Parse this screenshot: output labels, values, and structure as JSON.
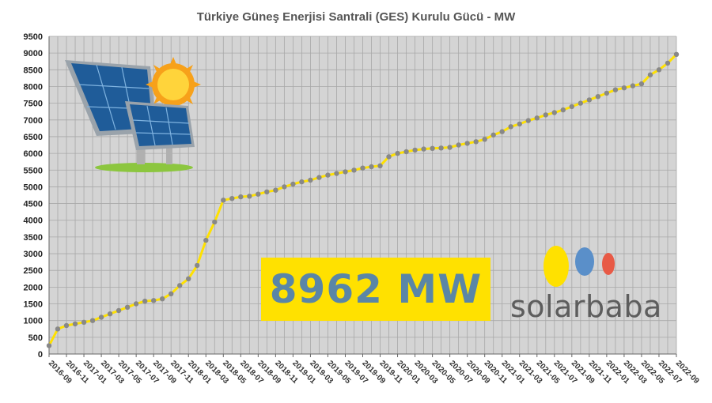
{
  "chart_data": {
    "type": "line",
    "title": "Türkiye Güneş Enerjisi Santrali (GES) Kurulu Gücü - MW",
    "xlabel": "",
    "ylabel": "",
    "ylim": [
      0,
      9500
    ],
    "yticks": [
      0,
      500,
      1000,
      1500,
      2000,
      2500,
      3000,
      3500,
      4000,
      4500,
      5000,
      5500,
      6000,
      6500,
      7000,
      7500,
      8000,
      8500,
      9000,
      9500
    ],
    "grid": true,
    "x_tick_labels": [
      "2016-09",
      "2016-11",
      "2017-01",
      "2017-03",
      "2017-05",
      "2017-07",
      "2017-09",
      "2017-11",
      "2018-01",
      "2018-03",
      "2018-05",
      "2018-07",
      "2018-09",
      "2018-11",
      "2019-01",
      "2019-03",
      "2019-05",
      "2019-07",
      "2019-09",
      "2019-11",
      "2020-01",
      "2020-03",
      "2020-05",
      "2020-07",
      "2020-09",
      "2020-11",
      "2021-01",
      "2021-03",
      "2021-05",
      "2021-07",
      "2021-09",
      "2021-11",
      "2022-01",
      "2022-03",
      "2022-05",
      "2022-07",
      "2022-09"
    ],
    "series": [
      {
        "line_color": "#ffe100",
        "marker_color": "#888888",
        "x": [
          "2016-09",
          "2016-10",
          "2016-11",
          "2016-12",
          "2017-01",
          "2017-02",
          "2017-03",
          "2017-04",
          "2017-05",
          "2017-06",
          "2017-07",
          "2017-08",
          "2017-09",
          "2017-10",
          "2017-11",
          "2017-12",
          "2018-01",
          "2018-02",
          "2018-03",
          "2018-04",
          "2018-05",
          "2018-06",
          "2018-07",
          "2018-08",
          "2018-09",
          "2018-10",
          "2018-11",
          "2018-12",
          "2019-01",
          "2019-02",
          "2019-03",
          "2019-04",
          "2019-05",
          "2019-06",
          "2019-07",
          "2019-08",
          "2019-09",
          "2019-10",
          "2019-11",
          "2019-12",
          "2020-01",
          "2020-02",
          "2020-03",
          "2020-04",
          "2020-05",
          "2020-06",
          "2020-07",
          "2020-08",
          "2020-09",
          "2020-10",
          "2020-11",
          "2020-12",
          "2021-01",
          "2021-02",
          "2021-03",
          "2021-04",
          "2021-05",
          "2021-06",
          "2021-07",
          "2021-08",
          "2021-09",
          "2021-10",
          "2021-11",
          "2021-12",
          "2022-01",
          "2022-02",
          "2022-03",
          "2022-04",
          "2022-05",
          "2022-06",
          "2022-07",
          "2022-08",
          "2022-09"
        ],
        "values": [
          250,
          750,
          850,
          900,
          950,
          1000,
          1100,
          1200,
          1300,
          1400,
          1500,
          1580,
          1600,
          1650,
          1800,
          2050,
          2250,
          2650,
          3400,
          3950,
          4600,
          4650,
          4700,
          4720,
          4780,
          4850,
          4900,
          5000,
          5080,
          5150,
          5200,
          5280,
          5350,
          5400,
          5450,
          5500,
          5560,
          5600,
          5630,
          5900,
          6000,
          6050,
          6100,
          6130,
          6150,
          6160,
          6180,
          6250,
          6300,
          6350,
          6420,
          6550,
          6650,
          6800,
          6880,
          6980,
          7060,
          7150,
          7220,
          7300,
          7400,
          7500,
          7600,
          7700,
          7800,
          7900,
          7960,
          8020,
          8080,
          8350,
          8500,
          8700,
          8962
        ]
      }
    ]
  },
  "highlight": {
    "value_text": "8962 MW"
  },
  "brand": {
    "name": "solarbaba",
    "dot_colors": [
      "#ffe100",
      "#5a8fc9",
      "#e85a46"
    ]
  },
  "illustration": {
    "icon": "solar-panel-with-sun-icon"
  }
}
